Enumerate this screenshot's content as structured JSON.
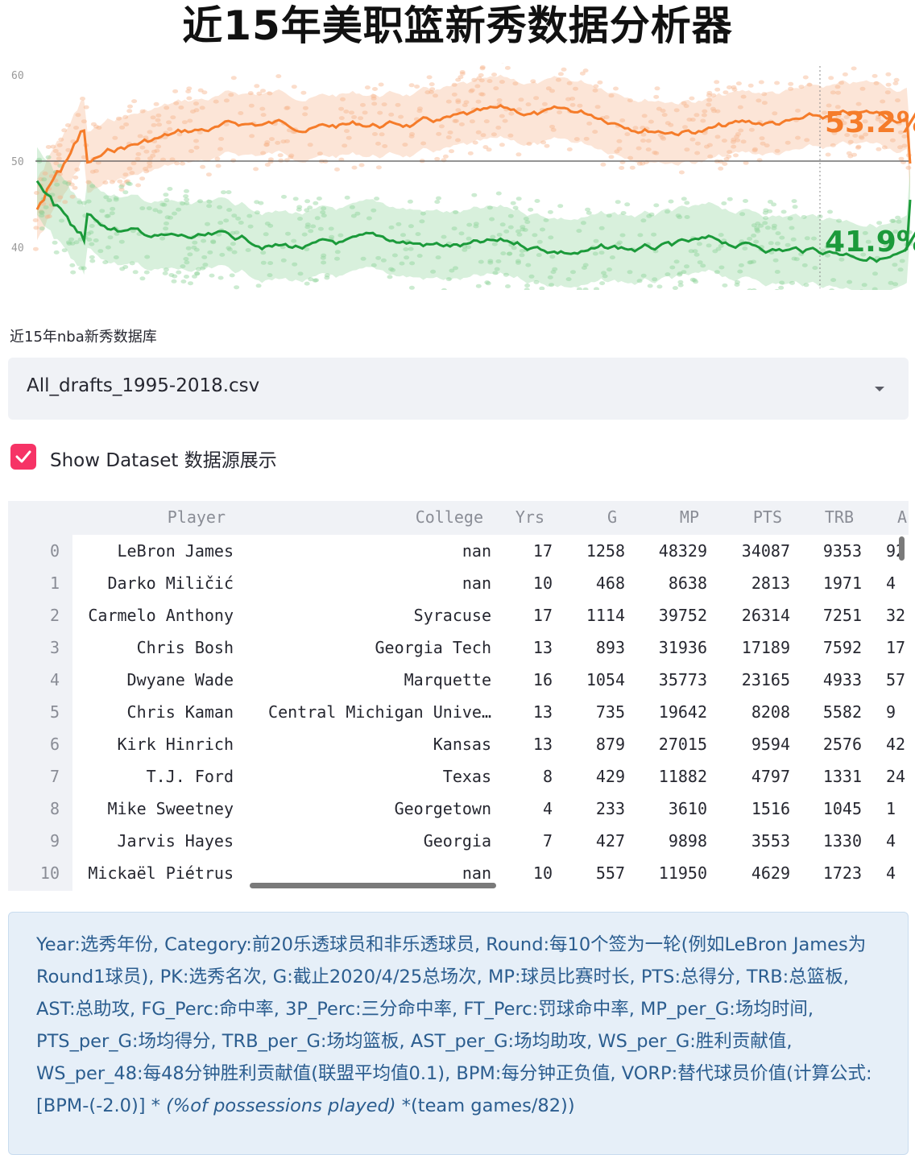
{
  "page": {
    "title": "近15年美职篮新秀数据分析器"
  },
  "banner": {
    "y_tick_labels": [
      "60",
      "50",
      "40"
    ],
    "orange_value_label": "53.2%",
    "green_value_label": "41.9%",
    "colors": {
      "orange": "#f57c2a",
      "green": "#1b9a3a",
      "orange_dots": "#f7b48c",
      "green_dots": "#8fd39a"
    }
  },
  "database_select": {
    "label": "近15年nba新秀数据库",
    "selected_value": "All_drafts_1995-2018.csv"
  },
  "show_dataset": {
    "checked": true,
    "label": "Show Dataset 数据源展示",
    "accent_color": "#f63366"
  },
  "table": {
    "columns": [
      "Player",
      "College",
      "Yrs",
      "G",
      "MP",
      "PTS",
      "TRB",
      "A"
    ],
    "rows": [
      {
        "index": "0",
        "player": "LeBron James",
        "college": "nan",
        "yrs": "17",
        "g": "1258",
        "mp": "48329",
        "pts": "34087",
        "trb": "9353",
        "a": "92"
      },
      {
        "index": "1",
        "player": "Darko Miličić",
        "college": "nan",
        "yrs": "10",
        "g": "468",
        "mp": "8638",
        "pts": "2813",
        "trb": "1971",
        "a": "4"
      },
      {
        "index": "2",
        "player": "Carmelo Anthony",
        "college": "Syracuse",
        "yrs": "17",
        "g": "1114",
        "mp": "39752",
        "pts": "26314",
        "trb": "7251",
        "a": "32"
      },
      {
        "index": "3",
        "player": "Chris Bosh",
        "college": "Georgia Tech",
        "yrs": "13",
        "g": "893",
        "mp": "31936",
        "pts": "17189",
        "trb": "7592",
        "a": "17"
      },
      {
        "index": "4",
        "player": "Dwyane Wade",
        "college": "Marquette",
        "yrs": "16",
        "g": "1054",
        "mp": "35773",
        "pts": "23165",
        "trb": "4933",
        "a": "57"
      },
      {
        "index": "5",
        "player": "Chris Kaman",
        "college": "Central Michigan Unive…",
        "yrs": "13",
        "g": "735",
        "mp": "19642",
        "pts": "8208",
        "trb": "5582",
        "a": "9"
      },
      {
        "index": "6",
        "player": "Kirk Hinrich",
        "college": "Kansas",
        "yrs": "13",
        "g": "879",
        "mp": "27015",
        "pts": "9594",
        "trb": "2576",
        "a": "42"
      },
      {
        "index": "7",
        "player": "T.J. Ford",
        "college": "Texas",
        "yrs": "8",
        "g": "429",
        "mp": "11882",
        "pts": "4797",
        "trb": "1331",
        "a": "24"
      },
      {
        "index": "8",
        "player": "Mike Sweetney",
        "college": "Georgetown",
        "yrs": "4",
        "g": "233",
        "mp": "3610",
        "pts": "1516",
        "trb": "1045",
        "a": "1"
      },
      {
        "index": "9",
        "player": "Jarvis Hayes",
        "college": "Georgia",
        "yrs": "7",
        "g": "427",
        "mp": "9898",
        "pts": "3553",
        "trb": "1330",
        "a": "4"
      },
      {
        "index": "10",
        "player": "Mickaël Piétrus",
        "college": "nan",
        "yrs": "10",
        "g": "557",
        "mp": "11950",
        "pts": "4629",
        "trb": "1723",
        "a": "4"
      }
    ]
  },
  "info": {
    "text_before": "Year:选秀年份, Category:前20乐透球员和非乐透球员, Round:每10个签为一轮(例如LeBron James为Round1球员), PK:选秀名次, G:截止2020/4/25总场次, MP:球员比赛时长, PTS:总得分, TRB:总篮板, AST:总助攻, FG_Perc:命中率, 3P_Perc:三分命中率, FT_Perc:罚球命中率, MP_per_G:场均时间, PTS_per_G:场均得分, TRB_per_G:场均篮板, AST_per_G:场均助攻, WS_per_G:胜利贡献值, WS_per_48:每48分钟胜利贡献值(联盟平均值0.1), BPM:每分钟正负值, VORP:替代球员价值(计算公式:[BPM-(-2.0)] * ",
    "text_italic": "(%of possessions played)",
    "text_after": " *(team games/82))"
  }
}
